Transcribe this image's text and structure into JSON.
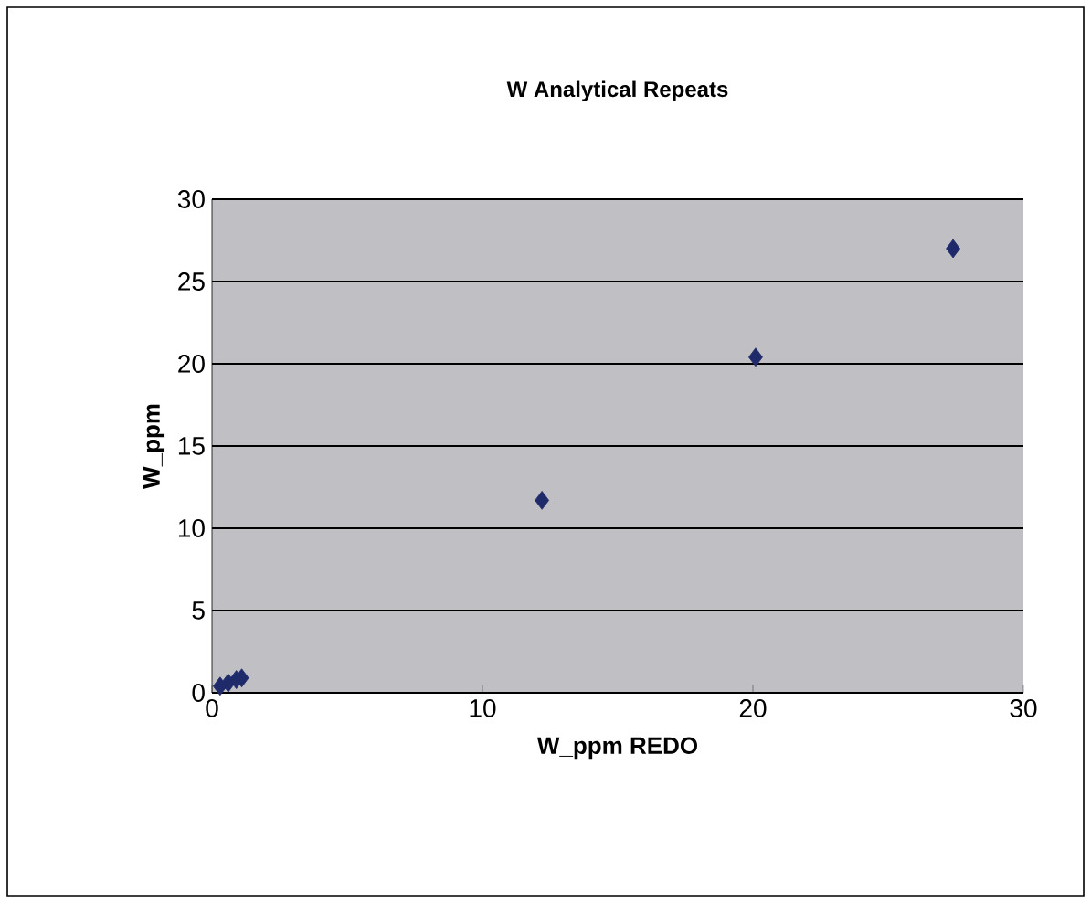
{
  "chart_data": {
    "type": "scatter",
    "title": "W Analytical Repeats",
    "xlabel": "W_ppm REDO",
    "ylabel": "W_ppm",
    "x": [
      0.3,
      0.6,
      0.9,
      1.1,
      12.2,
      20.1,
      27.4
    ],
    "values": [
      0.4,
      0.6,
      0.8,
      0.9,
      11.7,
      20.4,
      27.0
    ],
    "color": "#1f2a6b",
    "marker": "diamond",
    "grid": "y",
    "xlim": [
      0,
      30
    ],
    "xticks": [
      0,
      10,
      20,
      30
    ],
    "ylim": [
      0,
      30
    ],
    "yticks": [
      0,
      5,
      10,
      15,
      20,
      25,
      30
    ]
  }
}
